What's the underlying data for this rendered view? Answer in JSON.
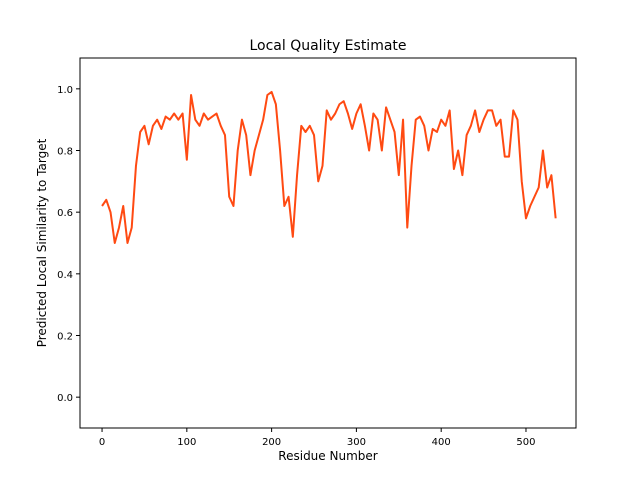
{
  "chart_data": {
    "type": "line",
    "title": "Local Quality Estimate",
    "x_label": "Residue Number",
    "y_label": "Predicted Local Similarity to Target",
    "xlim": [
      -26,
      559
    ],
    "ylim": [
      -0.1,
      1.1
    ],
    "xticks": [
      0,
      100,
      200,
      300,
      400,
      500
    ],
    "yticks": [
      {
        "value": 0,
        "label": "0.0"
      },
      0.2,
      0.4,
      0.6,
      0.8,
      {
        "value": 1,
        "label": "1.0"
      }
    ],
    "color": "#ff4a12",
    "x": [
      0,
      5,
      10,
      15,
      20,
      25,
      30,
      35,
      40,
      45,
      50,
      55,
      60,
      65,
      70,
      75,
      80,
      85,
      90,
      95,
      100,
      105,
      110,
      115,
      120,
      125,
      130,
      135,
      140,
      145,
      150,
      155,
      160,
      165,
      170,
      175,
      180,
      185,
      190,
      195,
      200,
      205,
      210,
      215,
      220,
      225,
      230,
      235,
      240,
      245,
      250,
      255,
      260,
      265,
      270,
      275,
      280,
      285,
      290,
      295,
      300,
      305,
      310,
      315,
      320,
      325,
      330,
      335,
      340,
      345,
      350,
      355,
      360,
      365,
      370,
      375,
      380,
      385,
      390,
      395,
      400,
      405,
      410,
      415,
      420,
      425,
      430,
      435,
      440,
      445,
      450,
      455,
      460,
      465,
      470,
      475,
      480,
      485,
      490,
      495,
      500,
      505,
      510,
      515,
      520,
      525,
      530,
      535
    ],
    "values": [
      0.62,
      0.64,
      0.6,
      0.5,
      0.55,
      0.62,
      0.5,
      0.55,
      0.75,
      0.86,
      0.88,
      0.82,
      0.88,
      0.9,
      0.87,
      0.91,
      0.9,
      0.92,
      0.9,
      0.92,
      0.77,
      0.98,
      0.9,
      0.88,
      0.92,
      0.9,
      0.91,
      0.92,
      0.88,
      0.85,
      0.65,
      0.62,
      0.8,
      0.9,
      0.85,
      0.72,
      0.8,
      0.85,
      0.9,
      0.98,
      0.99,
      0.95,
      0.8,
      0.62,
      0.65,
      0.52,
      0.72,
      0.88,
      0.86,
      0.88,
      0.85,
      0.7,
      0.75,
      0.93,
      0.9,
      0.92,
      0.95,
      0.96,
      0.92,
      0.87,
      0.92,
      0.95,
      0.88,
      0.8,
      0.92,
      0.9,
      0.8,
      0.94,
      0.9,
      0.86,
      0.72,
      0.9,
      0.55,
      0.75,
      0.9,
      0.91,
      0.88,
      0.8,
      0.87,
      0.86,
      0.9,
      0.88,
      0.93,
      0.74,
      0.8,
      0.72,
      0.85,
      0.88,
      0.93,
      0.86,
      0.9,
      0.93,
      0.93,
      0.88,
      0.9,
      0.78,
      0.78,
      0.93,
      0.9,
      0.7,
      0.58,
      0.62,
      0.65,
      0.68,
      0.8,
      0.68,
      0.72,
      0.58
    ]
  }
}
